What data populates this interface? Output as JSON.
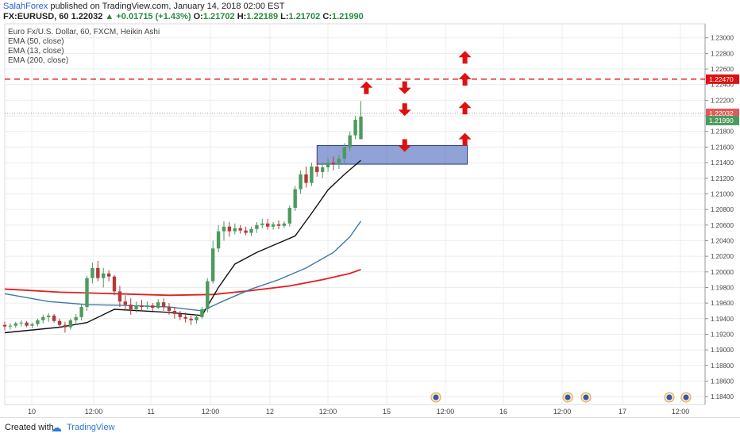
{
  "header": {
    "publisher": "SalahForex",
    "published_text": "published on TradingView.com, January 14, 2018 02:00 EST",
    "symbol": "FX:EURUSD, 60",
    "last_price": "1.22032",
    "change": "▲ +0.01715 (+1.43%)",
    "open_label": "O:",
    "open": "1.21702",
    "high_label": "H:",
    "high": "1.22189",
    "low_label": "L:",
    "low": "1.21702",
    "close_label": "C:",
    "close": "1.21990"
  },
  "legend": {
    "title": "Euro Fx/U.S. Dollar, 60, FXCM, Heikin Ashi",
    "ema1": "EMA (50, close)",
    "ema2": "EMA (13, close)",
    "ema3": "EMA (200, close)"
  },
  "price_tags": {
    "resistance": "1.22470",
    "current": "1.22032",
    "close": "1.21990"
  },
  "footer": {
    "made_with": "Created with",
    "brand": "TradingView"
  },
  "colors": {
    "up_candle": "#4d9a5e",
    "down_candle": "#b23a3a",
    "ema50": "#3a77a8",
    "ema13": "#111111",
    "ema200": "#e02020",
    "zone": "#5570c0",
    "arrow": "#e01010",
    "resistance": "#e01010"
  },
  "chart_data": {
    "type": "candlestick",
    "title": "Euro Fx/U.S. Dollar, 60, FXCM, Heikin Ashi",
    "y_ticks": [
      "1.23000",
      "1.22800",
      "1.22600",
      "1.22400",
      "1.22200",
      "1.22000",
      "1.21800",
      "1.21600",
      "1.21400",
      "1.21200",
      "1.21000",
      "1.20800",
      "1.20600",
      "1.20400",
      "1.20200",
      "1.20000",
      "1.19800",
      "1.19600",
      "1.19400",
      "1.19200",
      "1.19000",
      "1.18800",
      "1.18600",
      "1.18400"
    ],
    "ylim": [
      1.183,
      1.2318
    ],
    "x_ticks": [
      "10",
      "12:00",
      "11",
      "12:00",
      "12",
      "12:00",
      "15",
      "12:00",
      "16",
      "12:00",
      "17",
      "12:00"
    ],
    "candles": [
      [
        1.1932,
        1.1936,
        1.1925,
        1.193
      ],
      [
        1.193,
        1.1934,
        1.1926,
        1.1931
      ],
      [
        1.1931,
        1.1936,
        1.1928,
        1.1934
      ],
      [
        1.1934,
        1.1938,
        1.193,
        1.1935
      ],
      [
        1.1935,
        1.1937,
        1.1929,
        1.1931
      ],
      [
        1.1931,
        1.1935,
        1.1928,
        1.1933
      ],
      [
        1.1933,
        1.194,
        1.193,
        1.1938
      ],
      [
        1.1938,
        1.1945,
        1.1934,
        1.1942
      ],
      [
        1.1942,
        1.1947,
        1.1936,
        1.1944
      ],
      [
        1.1944,
        1.1946,
        1.1935,
        1.1937
      ],
      [
        1.1937,
        1.194,
        1.1928,
        1.1932
      ],
      [
        1.1932,
        1.1936,
        1.1922,
        1.1929
      ],
      [
        1.1929,
        1.194,
        1.1926,
        1.1938
      ],
      [
        1.1938,
        1.1946,
        1.1932,
        1.1942
      ],
      [
        1.1942,
        1.1958,
        1.1938,
        1.1955
      ],
      [
        1.1955,
        1.1995,
        1.195,
        1.1992
      ],
      [
        1.1992,
        1.2012,
        1.1985,
        1.2005
      ],
      [
        1.2005,
        1.2014,
        1.1988,
        1.1992
      ],
      [
        1.1992,
        1.2005,
        1.198,
        1.1998
      ],
      [
        1.1998,
        1.2002,
        1.1988,
        1.1994
      ],
      [
        1.1994,
        1.1996,
        1.197,
        1.1975
      ],
      [
        1.1975,
        1.1982,
        1.1955,
        1.1962
      ],
      [
        1.1962,
        1.197,
        1.195,
        1.1958
      ],
      [
        1.1958,
        1.1966,
        1.1945,
        1.1952
      ],
      [
        1.1952,
        1.1962,
        1.1948,
        1.1957
      ],
      [
        1.1957,
        1.1964,
        1.195,
        1.1955
      ],
      [
        1.1955,
        1.1962,
        1.1952,
        1.1957
      ],
      [
        1.1957,
        1.196,
        1.195,
        1.1954
      ],
      [
        1.1954,
        1.1965,
        1.1952,
        1.1961
      ],
      [
        1.1961,
        1.1966,
        1.195,
        1.1955
      ],
      [
        1.1955,
        1.196,
        1.1945,
        1.195
      ],
      [
        1.195,
        1.1955,
        1.194,
        1.1946
      ],
      [
        1.1946,
        1.195,
        1.1938,
        1.1942
      ],
      [
        1.1942,
        1.1948,
        1.1935,
        1.194
      ],
      [
        1.194,
        1.1944,
        1.1932,
        1.1938
      ],
      [
        1.1938,
        1.1945,
        1.1934,
        1.1942
      ],
      [
        1.1942,
        1.1955,
        1.194,
        1.1952
      ],
      [
        1.1952,
        1.1992,
        1.1948,
        1.1988
      ],
      [
        1.1988,
        1.204,
        1.1985,
        1.203
      ],
      [
        1.203,
        1.206,
        1.2025,
        1.2052
      ],
      [
        1.2052,
        1.2065,
        1.204,
        1.2058
      ],
      [
        1.2058,
        1.2064,
        1.2045,
        1.2052
      ],
      [
        1.2052,
        1.2062,
        1.2048,
        1.2056
      ],
      [
        1.2056,
        1.206,
        1.2049,
        1.2053
      ],
      [
        1.2053,
        1.2058,
        1.2047,
        1.205
      ],
      [
        1.205,
        1.2058,
        1.2046,
        1.2055
      ],
      [
        1.2055,
        1.2064,
        1.205,
        1.206
      ],
      [
        1.206,
        1.2068,
        1.2056,
        1.2062
      ],
      [
        1.2062,
        1.2068,
        1.2054,
        1.2058
      ],
      [
        1.2058,
        1.2064,
        1.2054,
        1.2061
      ],
      [
        1.2061,
        1.2066,
        1.2055,
        1.2059
      ],
      [
        1.2059,
        1.2065,
        1.2056,
        1.2062
      ],
      [
        1.2062,
        1.2085,
        1.2058,
        1.2082
      ],
      [
        1.2082,
        1.211,
        1.2078,
        1.2106
      ],
      [
        1.2106,
        1.213,
        1.21,
        1.2125
      ],
      [
        1.2125,
        1.2135,
        1.2108,
        1.2114
      ],
      [
        1.2114,
        1.214,
        1.211,
        1.2135
      ],
      [
        1.2135,
        1.2145,
        1.2122,
        1.2128
      ],
      [
        1.2128,
        1.214,
        1.212,
        1.2134
      ],
      [
        1.2134,
        1.2146,
        1.2128,
        1.214
      ],
      [
        1.214,
        1.2148,
        1.213,
        1.2138
      ],
      [
        1.2138,
        1.215,
        1.2132,
        1.2145
      ],
      [
        1.2145,
        1.2165,
        1.214,
        1.216
      ],
      [
        1.216,
        1.218,
        1.2155,
        1.2175
      ],
      [
        1.2175,
        1.22,
        1.217,
        1.2195
      ],
      [
        1.217,
        1.2219,
        1.217,
        1.2199
      ]
    ],
    "ema13": [
      [
        0,
        1.1922
      ],
      [
        10,
        1.1929
      ],
      [
        15,
        1.1935
      ],
      [
        20,
        1.1952
      ],
      [
        25,
        1.195
      ],
      [
        30,
        1.1948
      ],
      [
        36,
        1.1944
      ],
      [
        39,
        1.198
      ],
      [
        42,
        1.201
      ],
      [
        46,
        1.2025
      ],
      [
        50,
        1.2037
      ],
      [
        53,
        1.2046
      ],
      [
        56,
        1.2075
      ],
      [
        59,
        1.2105
      ],
      [
        62,
        1.2125
      ],
      [
        65,
        1.2143
      ]
    ],
    "ema50": [
      [
        0,
        1.1972
      ],
      [
        8,
        1.1962
      ],
      [
        15,
        1.1958
      ],
      [
        22,
        1.1957
      ],
      [
        30,
        1.1955
      ],
      [
        36,
        1.195
      ],
      [
        40,
        1.1963
      ],
      [
        45,
        1.1978
      ],
      [
        50,
        1.199
      ],
      [
        55,
        1.2005
      ],
      [
        60,
        1.2025
      ],
      [
        63,
        1.2045
      ],
      [
        65,
        1.2065
      ]
    ],
    "ema200": [
      [
        0,
        1.1978
      ],
      [
        10,
        1.1974
      ],
      [
        20,
        1.1972
      ],
      [
        30,
        1.197
      ],
      [
        38,
        1.1971
      ],
      [
        45,
        1.1976
      ],
      [
        52,
        1.1982
      ],
      [
        58,
        1.199
      ],
      [
        63,
        1.1998
      ],
      [
        65,
        1.2003
      ]
    ],
    "resistance_level": 1.2247,
    "current_level": 1.22032,
    "zone": {
      "from_bar": 57,
      "to_bar": 84,
      "low": 1.2138,
      "high": 1.2162
    },
    "arrows": [
      {
        "bar": 66,
        "price": 1.2236,
        "dir": "up"
      },
      {
        "bar": 73,
        "price": 1.2236,
        "dir": "down"
      },
      {
        "bar": 73,
        "price": 1.2208,
        "dir": "down"
      },
      {
        "bar": 73,
        "price": 1.2162,
        "dir": "down"
      },
      {
        "bar": 84,
        "price": 1.2275,
        "dir": "up"
      },
      {
        "bar": 84,
        "price": 1.2247,
        "dir": "up"
      },
      {
        "bar": 84,
        "price": 1.221,
        "dir": "up"
      },
      {
        "bar": 84,
        "price": 1.217,
        "dir": "up"
      }
    ],
    "grid": true
  }
}
